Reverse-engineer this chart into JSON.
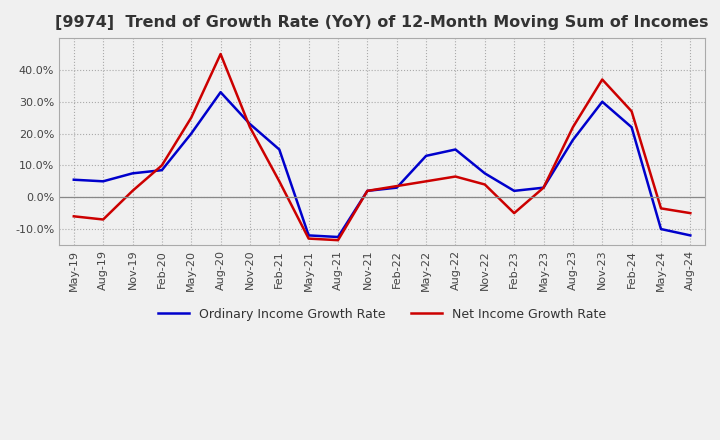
{
  "title": "[9974]  Trend of Growth Rate (YoY) of 12-Month Moving Sum of Incomes",
  "title_fontsize": 11.5,
  "ylim": [
    -15,
    50
  ],
  "yticks": [
    -10,
    0,
    10,
    20,
    30,
    40
  ],
  "legend_labels": [
    "Ordinary Income Growth Rate",
    "Net Income Growth Rate"
  ],
  "line_colors": [
    "#0000cc",
    "#cc0000"
  ],
  "bg_color": "#f0f0f0",
  "plot_bg_color": "#f0f0f0",
  "grid_color": "#aaaaaa",
  "zero_line_color": "#888888",
  "dates": [
    "May-19",
    "Aug-19",
    "Nov-19",
    "Feb-20",
    "May-20",
    "Aug-20",
    "Nov-20",
    "Feb-21",
    "May-21",
    "Aug-21",
    "Nov-21",
    "Feb-22",
    "May-22",
    "Aug-22",
    "Nov-22",
    "Feb-23",
    "May-23",
    "Aug-23",
    "Nov-23",
    "Feb-24",
    "May-24",
    "Aug-24"
  ],
  "ordinary_income": [
    5.5,
    5.0,
    7.5,
    8.5,
    20.0,
    33.0,
    23.0,
    15.0,
    -12.0,
    -12.5,
    2.0,
    3.0,
    13.0,
    15.0,
    7.5,
    2.0,
    3.0,
    18.0,
    30.0,
    22.0,
    -10.0,
    -12.0
  ],
  "net_income": [
    -6.0,
    -7.0,
    2.0,
    10.0,
    25.0,
    45.0,
    22.0,
    5.0,
    -13.0,
    -13.5,
    2.0,
    3.5,
    5.0,
    6.5,
    4.0,
    -5.0,
    3.0,
    22.0,
    37.0,
    27.0,
    -3.5,
    -5.0
  ]
}
